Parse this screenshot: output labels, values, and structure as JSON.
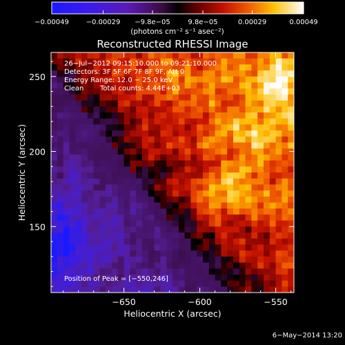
{
  "chart_data": {
    "type": "heatmap",
    "title": "Reconstructed RHESSI Image",
    "colorbar": {
      "tick_labels": [
        "−0.00049",
        "−0.00029",
        "−9.8e−05",
        "9.8e−05",
        "0.00029",
        "0.00049"
      ],
      "tick_values": [
        -0.00049,
        -0.00029,
        -9.8e-05,
        9.8e-05,
        0.00029,
        0.00049
      ],
      "range": [
        -0.00049,
        0.00049
      ],
      "unit_label": "(photons cm⁻² s⁻¹ asec⁻²)",
      "colormap": "rhessi-blue-purple-red-yellow-white"
    },
    "xlabel": "Heliocentric X (arcsec)",
    "ylabel": "Heliocentric Y (arcsec)",
    "xlim": [
      -698,
      -538
    ],
    "ylim": [
      106,
      266
    ],
    "xticks": [
      -650,
      -600,
      -550
    ],
    "xtick_labels": [
      "−650",
      "−600",
      "−550"
    ],
    "yticks": [
      150,
      200,
      250
    ],
    "ytick_labels": [
      "150",
      "200",
      "250"
    ],
    "grid_size": [
      40,
      40
    ],
    "peak_position": [
      -550,
      246
    ],
    "annotations": [
      "26−Jul−2012 09:15:10.000 to 09:21:10.000",
      "Detectors: 3F 5F 6F 7F 8F 9F, Att 0",
      "Energy Range: 12.0 − 25.0 keV",
      "Clean",
      "Total counts: 4.44E+03",
      "Position of Peak = [−550,246]"
    ],
    "grid": false,
    "legend": "none"
  },
  "footer": {
    "timestamp": "6−May−2014 13:20"
  }
}
